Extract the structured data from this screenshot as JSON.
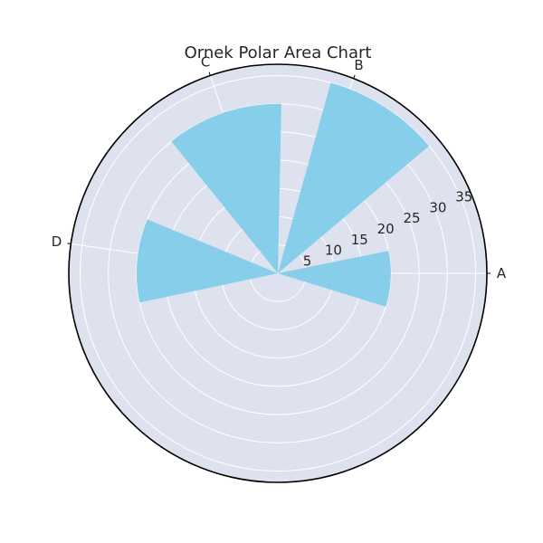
{
  "chart_data": {
    "type": "polar_bar",
    "title": "Ornek Polar Area Chart",
    "categories": [
      "A",
      "B",
      "C",
      "D"
    ],
    "values": [
      20,
      35,
      30,
      25
    ],
    "bar_color": "#87CEEB",
    "background_color": "#DDE2EE",
    "grid_color": "#FFFFFF",
    "rlim": [
      0,
      37
    ],
    "r_ticks": [
      5,
      10,
      15,
      20,
      25,
      30,
      35
    ],
    "theta_tick_labels": [
      "A",
      "B",
      "C",
      "D"
    ],
    "grid": true
  }
}
